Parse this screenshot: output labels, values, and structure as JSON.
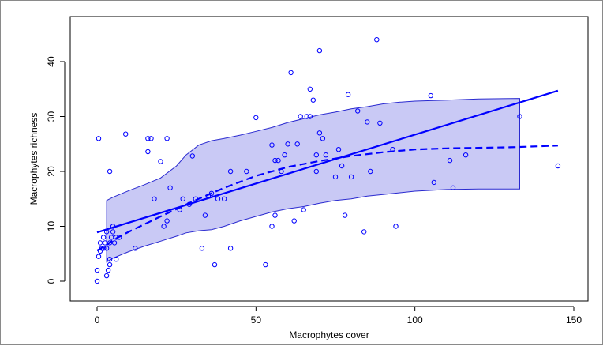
{
  "chart_data": {
    "type": "scatter",
    "title": "",
    "xlabel": "Macrophytes cover",
    "ylabel": "Macrophytes richness",
    "xlim": [
      0,
      150
    ],
    "ylim": [
      0,
      45
    ],
    "x_ticks": [
      0,
      50,
      100,
      150
    ],
    "y_ticks": [
      0,
      10,
      20,
      30,
      40
    ],
    "grid": false,
    "legend": "none",
    "colors": {
      "points": "#0000ff",
      "fit_line": "#0000ff",
      "band_fill": "#c9c9f5",
      "band_edge": "#2a2ad0"
    },
    "points": [
      [
        0,
        0
      ],
      [
        0,
        2
      ],
      [
        0.5,
        4.5
      ],
      [
        1,
        5.5
      ],
      [
        1,
        7
      ],
      [
        1.5,
        6
      ],
      [
        2,
        6
      ],
      [
        2,
        8
      ],
      [
        2.5,
        7
      ],
      [
        3,
        6
      ],
      [
        3,
        1
      ],
      [
        3.5,
        2
      ],
      [
        4,
        4
      ],
      [
        4,
        7
      ],
      [
        4.5,
        8
      ],
      [
        5,
        9
      ],
      [
        5,
        10
      ],
      [
        5.5,
        7
      ],
      [
        6,
        8
      ],
      [
        6,
        4
      ],
      [
        7,
        8
      ],
      [
        4,
        3
      ],
      [
        3,
        9
      ],
      [
        0.5,
        26
      ],
      [
        4,
        20
      ],
      [
        9,
        26.8
      ],
      [
        12,
        6
      ],
      [
        16,
        23.6
      ],
      [
        16,
        26
      ],
      [
        17,
        26
      ],
      [
        18,
        15
      ],
      [
        20,
        21.8
      ],
      [
        21,
        10
      ],
      [
        22,
        26
      ],
      [
        22,
        11
      ],
      [
        23,
        17
      ],
      [
        26,
        13
      ],
      [
        27,
        15
      ],
      [
        29,
        14
      ],
      [
        30,
        22.8
      ],
      [
        31,
        15
      ],
      [
        33,
        6
      ],
      [
        34,
        12
      ],
      [
        35,
        15.5
      ],
      [
        36,
        16
      ],
      [
        37,
        3
      ],
      [
        38,
        15
      ],
      [
        40,
        15
      ],
      [
        42,
        6
      ],
      [
        42,
        20
      ],
      [
        47,
        20
      ],
      [
        50,
        29.8
      ],
      [
        53,
        3
      ],
      [
        55,
        10
      ],
      [
        55,
        24.8
      ],
      [
        56,
        22
      ],
      [
        56,
        12
      ],
      [
        57,
        22
      ],
      [
        58,
        20
      ],
      [
        59,
        23
      ],
      [
        60,
        25
      ],
      [
        61,
        38
      ],
      [
        62,
        11
      ],
      [
        63,
        25
      ],
      [
        64,
        30
      ],
      [
        65,
        13
      ],
      [
        66,
        30
      ],
      [
        67,
        35
      ],
      [
        67,
        30
      ],
      [
        68,
        33
      ],
      [
        69,
        20
      ],
      [
        69,
        23
      ],
      [
        70,
        27
      ],
      [
        70,
        42
      ],
      [
        71,
        26
      ],
      [
        72,
        23
      ],
      [
        75,
        19
      ],
      [
        76,
        24
      ],
      [
        77,
        21
      ],
      [
        78,
        12
      ],
      [
        79,
        34
      ],
      [
        80,
        19
      ],
      [
        82,
        31
      ],
      [
        84,
        9
      ],
      [
        85,
        29
      ],
      [
        86,
        20
      ],
      [
        88,
        44
      ],
      [
        89,
        28.8
      ],
      [
        93,
        24
      ],
      [
        94,
        10
      ],
      [
        105,
        33.8
      ],
      [
        106,
        18
      ],
      [
        111,
        22
      ],
      [
        112,
        17
      ],
      [
        116,
        23
      ],
      [
        133,
        30
      ],
      [
        145,
        21
      ]
    ],
    "linear_fit": {
      "x": [
        0,
        145
      ],
      "y": [
        8.9,
        34.7
      ]
    },
    "smooth_fit": {
      "x": [
        0,
        1,
        2,
        3,
        5,
        10,
        20,
        30,
        40,
        50,
        60,
        70,
        80,
        90,
        100,
        110,
        120,
        130,
        145
      ],
      "y": [
        5.6,
        5.9,
        6.3,
        6.6,
        7.5,
        9.0,
        11.8,
        14.5,
        17.0,
        19.2,
        20.8,
        21.9,
        22.8,
        23.5,
        24.0,
        24.2,
        24.3,
        24.4,
        24.7
      ]
    },
    "confidence_band": {
      "x": [
        3,
        5,
        10,
        15,
        20,
        25,
        28,
        32,
        36,
        40,
        45,
        50,
        55,
        60,
        65,
        70,
        75,
        80,
        85,
        90,
        95,
        100,
        110,
        120,
        133
      ],
      "upper": [
        14.7,
        15.3,
        16.5,
        17.6,
        18.8,
        21.0,
        23.0,
        24.8,
        25.6,
        26.0,
        26.6,
        27.3,
        28.0,
        28.9,
        29.6,
        30.3,
        30.8,
        31.4,
        31.8,
        32.3,
        32.6,
        32.8,
        33.0,
        33.2,
        33.3
      ],
      "lower": [
        3.5,
        4.2,
        5.4,
        6.4,
        7.3,
        8.2,
        8.8,
        9.2,
        9.4,
        10.0,
        11.0,
        11.8,
        12.6,
        13.2,
        13.6,
        14.2,
        14.7,
        15.0,
        15.5,
        15.8,
        16.1,
        16.4,
        16.7,
        16.8,
        16.8
      ]
    }
  }
}
